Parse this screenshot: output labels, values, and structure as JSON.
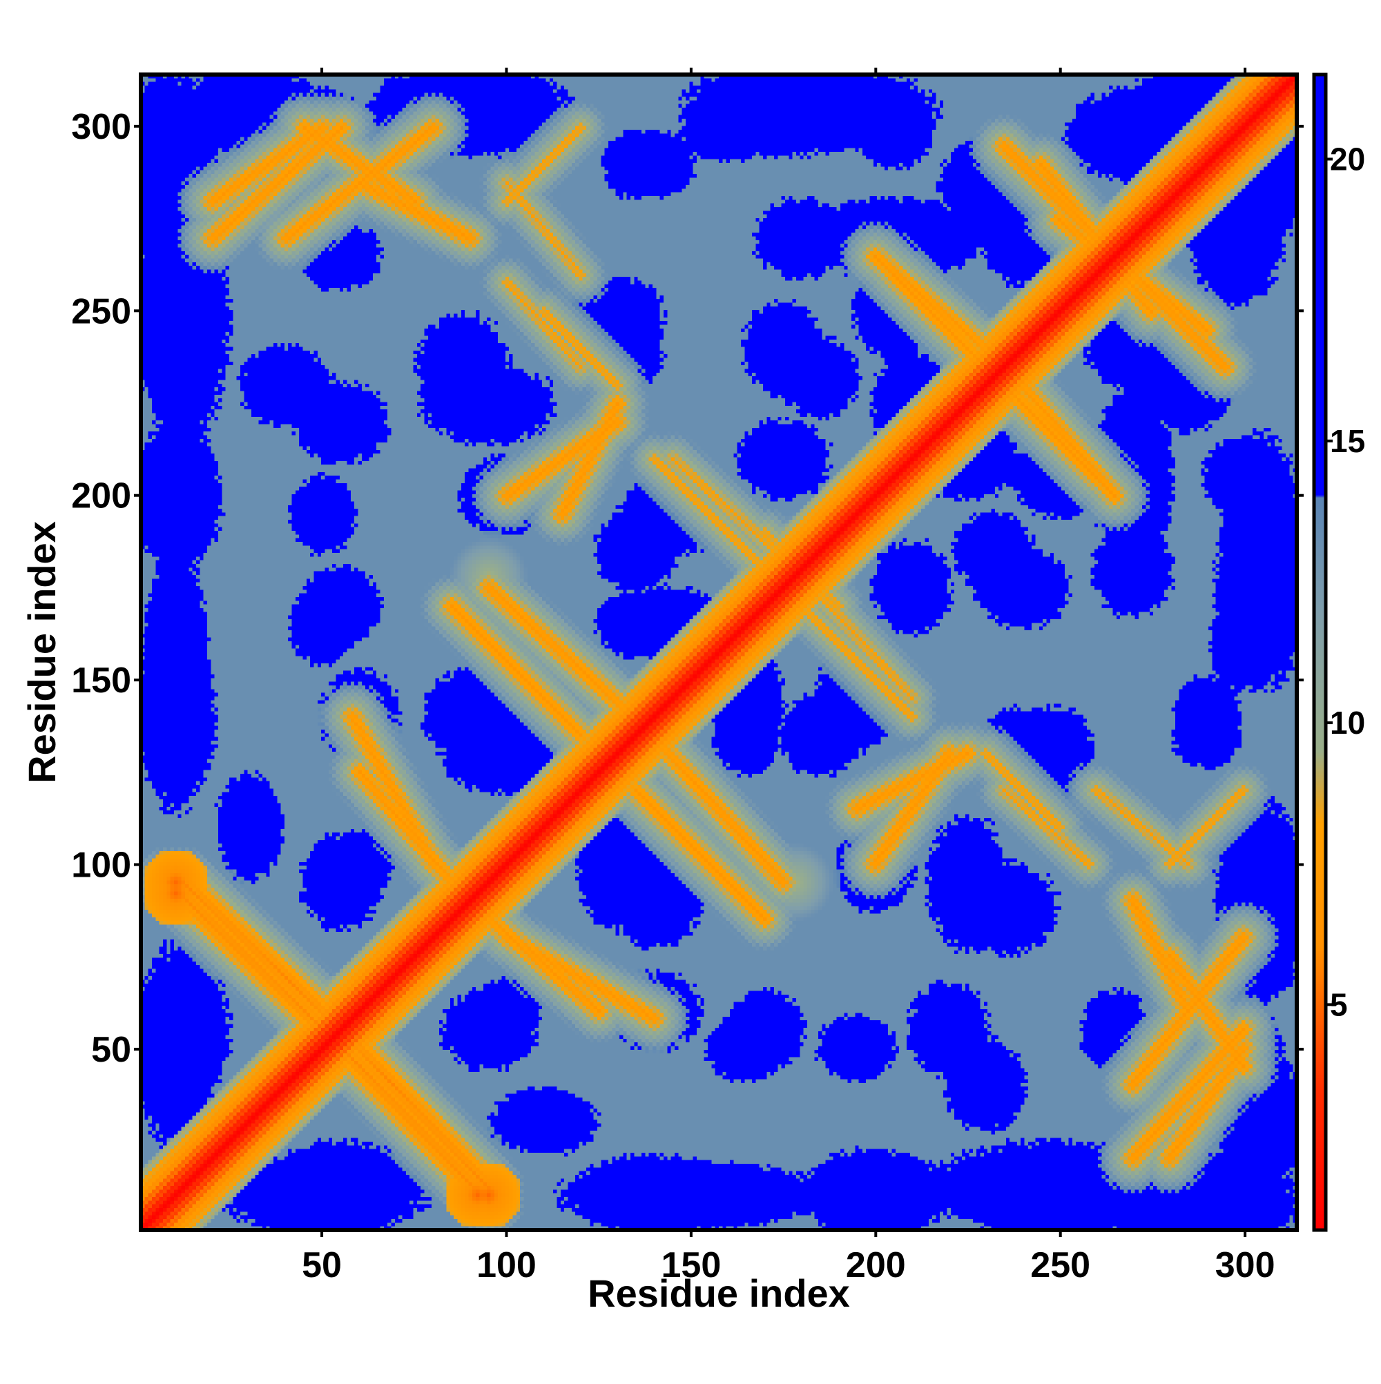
{
  "chart_data": {
    "type": "heatmap",
    "title": "",
    "xlabel": "Residue index",
    "ylabel": "Residue index",
    "xlim": [
      1,
      314
    ],
    "ylim": [
      1,
      314
    ],
    "n_residues": 314,
    "x_ticks": [
      50,
      100,
      150,
      200,
      250,
      300
    ],
    "y_ticks": [
      50,
      100,
      150,
      200,
      250,
      300
    ],
    "colorbar": {
      "range": [
        1,
        21.5
      ],
      "ticks": [
        5,
        10,
        15,
        20
      ],
      "saturate_above": 14,
      "stops": [
        {
          "value": 1.0,
          "color": "#ff0000"
        },
        {
          "value": 3.5,
          "color": "#ff3000"
        },
        {
          "value": 6.0,
          "color": "#ff9000"
        },
        {
          "value": 8.2,
          "color": "#ffa000"
        },
        {
          "value": 9.5,
          "color": "#9aaf8a"
        },
        {
          "value": 12.0,
          "color": "#7f9eac"
        },
        {
          "value": 14.0,
          "color": "#5b85b5"
        },
        {
          "value": 14.0,
          "color": "#0000ff"
        },
        {
          "value": 21.5,
          "color": "#0000ff"
        }
      ]
    },
    "contact_bands": [
      {
        "region": "diagonal",
        "from": [
          1,
          1
        ],
        "to": [
          314,
          314
        ],
        "distance": 1.5
      },
      {
        "region": "helix-helix",
        "from": [
          55,
          50
        ],
        "to": [
          95,
          8
        ],
        "distance": 6
      },
      {
        "region": "helix-helix",
        "from": [
          12,
          95
        ],
        "to": [
          55,
          55
        ],
        "distance": 6
      },
      {
        "region": "helix-helix",
        "from": [
          60,
          125
        ],
        "to": [
          85,
          95
        ],
        "distance": 7
      },
      {
        "region": "helix-helix",
        "from": [
          100,
          80
        ],
        "to": [
          140,
          58
        ],
        "distance": 7
      },
      {
        "region": "helix-helix",
        "from": [
          95,
          175
        ],
        "to": [
          140,
          135
        ],
        "distance": 7
      },
      {
        "region": "helix-helix",
        "from": [
          135,
          120
        ],
        "to": [
          170,
          85
        ],
        "distance": 7
      },
      {
        "region": "helix-helix",
        "from": [
          100,
          200
        ],
        "to": [
          130,
          220
        ],
        "distance": 7
      },
      {
        "region": "helix-helix",
        "from": [
          145,
          210
        ],
        "to": [
          190,
          170
        ],
        "distance": 8
      },
      {
        "region": "helix-helix",
        "from": [
          180,
          170
        ],
        "to": [
          210,
          140
        ],
        "distance": 8
      },
      {
        "region": "helix-helix",
        "from": [
          195,
          115
        ],
        "to": [
          225,
          130
        ],
        "distance": 7
      },
      {
        "region": "helix-helix",
        "from": [
          235,
          120
        ],
        "to": [
          258,
          100
        ],
        "distance": 8
      },
      {
        "region": "helix-helix",
        "from": [
          205,
          260
        ],
        "to": [
          235,
          230
        ],
        "distance": 7
      },
      {
        "region": "helix-helix",
        "from": [
          240,
          230
        ],
        "to": [
          265,
          200
        ],
        "distance": 7
      },
      {
        "region": "helix-helix",
        "from": [
          245,
          290
        ],
        "to": [
          275,
          250
        ],
        "distance": 7
      },
      {
        "region": "helix-helix",
        "from": [
          270,
          260
        ],
        "to": [
          295,
          235
        ],
        "distance": 7
      },
      {
        "region": "helix-helix",
        "from": [
          280,
          75
        ],
        "to": [
          300,
          45
        ],
        "distance": 7
      },
      {
        "region": "helix-helix",
        "from": [
          270,
          20
        ],
        "to": [
          300,
          55
        ],
        "distance": 7
      },
      {
        "region": "helix-helix",
        "from": [
          40,
          270
        ],
        "to": [
          80,
          300
        ],
        "distance": 7
      },
      {
        "region": "helix-helix",
        "from": [
          20,
          280
        ],
        "to": [
          50,
          300
        ],
        "distance": 7
      },
      {
        "region": "helix-helix",
        "from": [
          60,
          285
        ],
        "to": [
          90,
          270
        ],
        "distance": 7
      },
      {
        "region": "helix-helix",
        "from": [
          100,
          285
        ],
        "to": [
          120,
          260
        ],
        "distance": 8
      },
      {
        "region": "helix-helix",
        "from": [
          110,
          250
        ],
        "to": [
          130,
          230
        ],
        "distance": 8
      },
      {
        "region": "helix-helix",
        "from": [
          280,
          100
        ],
        "to": [
          300,
          120
        ],
        "distance": 8
      }
    ],
    "contact_blobs": [
      {
        "center": [
          120,
          210
        ],
        "radius": 14,
        "distance": 9
      },
      {
        "center": [
          185,
          180
        ],
        "radius": 10,
        "distance": 9
      },
      {
        "center": [
          178,
          95
        ],
        "radius": 10,
        "distance": 9
      },
      {
        "center": [
          10,
          95
        ],
        "radius": 6,
        "distance": 5
      },
      {
        "center": [
          92,
          10
        ],
        "radius": 6,
        "distance": 5
      }
    ],
    "far_regions": [
      {
        "center": [
          8,
          290
        ],
        "rx": 14,
        "ry": 28
      },
      {
        "center": [
          10,
          245
        ],
        "rx": 14,
        "ry": 20
      },
      {
        "center": [
          10,
          200
        ],
        "rx": 14,
        "ry": 22
      },
      {
        "center": [
          10,
          140
        ],
        "rx": 12,
        "ry": 25
      },
      {
        "center": [
          12,
          55
        ],
        "rx": 14,
        "ry": 22
      },
      {
        "center": [
          50,
          10
        ],
        "rx": 30,
        "ry": 12
      },
      {
        "center": [
          150,
          10
        ],
        "rx": 40,
        "ry": 10
      },
      {
        "center": [
          250,
          12
        ],
        "rx": 40,
        "ry": 14
      },
      {
        "center": [
          305,
          30
        ],
        "rx": 14,
        "ry": 20
      },
      {
        "center": [
          305,
          90
        ],
        "rx": 14,
        "ry": 30
      },
      {
        "center": [
          305,
          175
        ],
        "rx": 14,
        "ry": 30
      },
      {
        "center": [
          305,
          290
        ],
        "rx": 14,
        "ry": 25
      },
      {
        "center": [
          90,
          305
        ],
        "rx": 30,
        "ry": 12
      },
      {
        "center": [
          190,
          305
        ],
        "rx": 30,
        "ry": 12
      },
      {
        "center": [
          270,
          298
        ],
        "rx": 20,
        "ry": 14
      },
      {
        "center": [
          50,
          300
        ],
        "rx": 12,
        "ry": 12
      },
      {
        "center": [
          60,
          140
        ],
        "rx": 12,
        "ry": 14
      },
      {
        "center": [
          55,
          220
        ],
        "rx": 14,
        "ry": 12
      },
      {
        "center": [
          95,
          225
        ],
        "rx": 20,
        "ry": 12
      },
      {
        "center": [
          130,
          240
        ],
        "rx": 14,
        "ry": 14
      },
      {
        "center": [
          145,
          195
        ],
        "rx": 16,
        "ry": 12
      },
      {
        "center": [
          140,
          90
        ],
        "rx": 14,
        "ry": 14
      },
      {
        "center": [
          100,
          130
        ],
        "rx": 20,
        "ry": 12
      },
      {
        "center": [
          95,
          55
        ],
        "rx": 14,
        "ry": 12
      },
      {
        "center": [
          60,
          100
        ],
        "rx": 10,
        "ry": 10
      },
      {
        "center": [
          55,
          170
        ],
        "rx": 12,
        "ry": 12
      },
      {
        "center": [
          145,
          165
        ],
        "rx": 14,
        "ry": 12
      },
      {
        "center": [
          165,
          135
        ],
        "rx": 10,
        "ry": 12
      },
      {
        "center": [
          185,
          135
        ],
        "rx": 12,
        "ry": 12
      },
      {
        "center": [
          165,
          50
        ],
        "rx": 12,
        "ry": 10
      },
      {
        "center": [
          195,
          50
        ],
        "rx": 12,
        "ry": 10
      },
      {
        "center": [
          185,
          232
        ],
        "rx": 12,
        "ry": 12
      },
      {
        "center": [
          205,
          270
        ],
        "rx": 28,
        "ry": 12
      },
      {
        "center": [
          160,
          300
        ],
        "rx": 14,
        "ry": 10
      },
      {
        "center": [
          250,
          205
        ],
        "rx": 14,
        "ry": 12
      },
      {
        "center": [
          270,
          240
        ],
        "rx": 14,
        "ry": 12
      },
      {
        "center": [
          270,
          180
        ],
        "rx": 12,
        "ry": 14
      },
      {
        "center": [
          235,
          88
        ],
        "rx": 16,
        "ry": 14
      },
      {
        "center": [
          250,
          130
        ],
        "rx": 10,
        "ry": 14
      },
      {
        "center": [
          240,
          175
        ],
        "rx": 14,
        "ry": 12
      },
      {
        "center": [
          200,
          98
        ],
        "rx": 12,
        "ry": 12
      },
      {
        "center": [
          230,
          40
        ],
        "rx": 12,
        "ry": 14
      },
      {
        "center": [
          265,
          55
        ],
        "rx": 10,
        "ry": 12
      },
      {
        "center": [
          110,
          30
        ],
        "rx": 16,
        "ry": 10
      },
      {
        "center": [
          210,
          175
        ],
        "rx": 12,
        "ry": 14
      },
      {
        "center": [
          230,
          285
        ],
        "rx": 14,
        "ry": 14
      },
      {
        "center": [
          210,
          225
        ],
        "rx": 12,
        "ry": 16
      },
      {
        "center": [
          135,
          290
        ],
        "rx": 10,
        "ry": 10
      },
      {
        "center": [
          300,
          205
        ],
        "rx": 12,
        "ry": 12
      },
      {
        "center": [
          290,
          140
        ],
        "rx": 10,
        "ry": 12
      }
    ]
  }
}
